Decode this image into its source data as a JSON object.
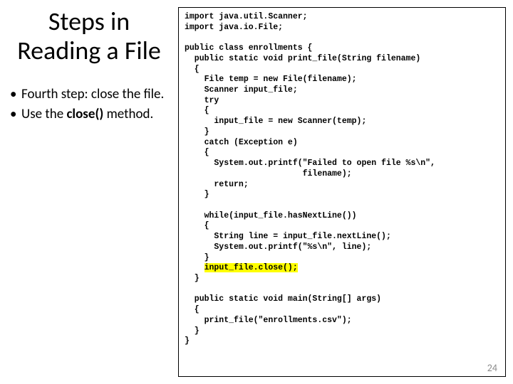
{
  "title": "Steps in Reading a File",
  "bullets": [
    {
      "pre": "Fourth step: close the file."
    },
    {
      "pre": "Use the ",
      "bold": "close()",
      "post": " method."
    }
  ],
  "code": {
    "l01": "import java.util.Scanner;",
    "l02": "import java.io.File;",
    "l03": "",
    "l04": "public class enrollments {",
    "l05": "  public static void print_file(String filename)",
    "l06": "  {",
    "l07": "    File temp = new File(filename);",
    "l08": "    Scanner input_file;",
    "l09": "    try",
    "l10": "    {",
    "l11": "      input_file = new Scanner(temp);",
    "l12": "    }",
    "l13": "    catch (Exception e)",
    "l14": "    {",
    "l15": "      System.out.printf(\"Failed to open file %s\\n\",",
    "l16": "                        filename);",
    "l17": "      return;",
    "l18": "    }",
    "l19": "",
    "l20": "    while(input_file.hasNextLine())",
    "l21": "    {",
    "l22": "      String line = input_file.nextLine();",
    "l23": "      System.out.printf(\"%s\\n\", line);",
    "l24": "    }",
    "l25pre": "    ",
    "l25hl": "input_file.close();",
    "l26": "  }",
    "l27": "",
    "l28": "  public static void main(String[] args)",
    "l29": "  {",
    "l30": "    print_file(\"enrollments.csv\");",
    "l31": "  }",
    "l32": "}"
  },
  "page_number": "24",
  "colors": {
    "highlight": "#ffff00",
    "text": "#000000",
    "page_num": "#8b8b8b",
    "background": "#ffffff"
  },
  "fonts": {
    "title_size_pt": 36,
    "bullet_size_pt": 19,
    "code_size_pt": 11.5,
    "code_family": "Courier New",
    "body_family": "Calibri"
  }
}
